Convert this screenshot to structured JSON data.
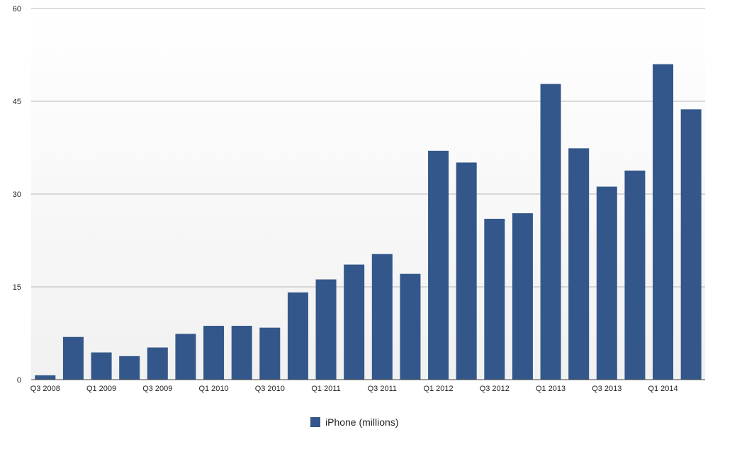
{
  "chart_data": {
    "type": "bar",
    "categories": [
      "Q3 2008",
      "Q4 2008",
      "Q1 2009",
      "Q2 2009",
      "Q3 2009",
      "Q4 2009",
      "Q1 2010",
      "Q2 2010",
      "Q3 2010",
      "Q4 2010",
      "Q1 2011",
      "Q2 2011",
      "Q3 2011",
      "Q4 2011",
      "Q1 2012",
      "Q2 2012",
      "Q3 2012",
      "Q4 2012",
      "Q1 2013",
      "Q2 2013",
      "Q3 2013",
      "Q4 2013",
      "Q1 2014",
      "Q2 2014"
    ],
    "x_tick_labels": [
      "Q3 2008",
      "",
      "Q1 2009",
      "",
      "Q3 2009",
      "",
      "Q1 2010",
      "",
      "Q3 2010",
      "",
      "Q1 2011",
      "",
      "Q3 2011",
      "",
      "Q1 2012",
      "",
      "Q3 2012",
      "",
      "Q1 2013",
      "",
      "Q3 2013",
      "",
      "Q1 2014",
      ""
    ],
    "series": [
      {
        "name": "iPhone (millions)",
        "color": "#33578a",
        "values": [
          0.7,
          6.9,
          4.4,
          3.8,
          5.2,
          7.4,
          8.7,
          8.7,
          8.4,
          14.1,
          16.2,
          18.6,
          20.3,
          17.1,
          37.0,
          35.1,
          26.0,
          26.9,
          47.8,
          37.4,
          31.2,
          33.8,
          51.0,
          43.7
        ]
      }
    ],
    "y_ticks": [
      0,
      15,
      30,
      45,
      60
    ],
    "ylim": [
      0,
      60
    ],
    "grid": true,
    "legend_position": "bottom-center",
    "title": "",
    "xlabel": "",
    "ylabel": ""
  },
  "legend": {
    "label": "iPhone (millions)"
  }
}
